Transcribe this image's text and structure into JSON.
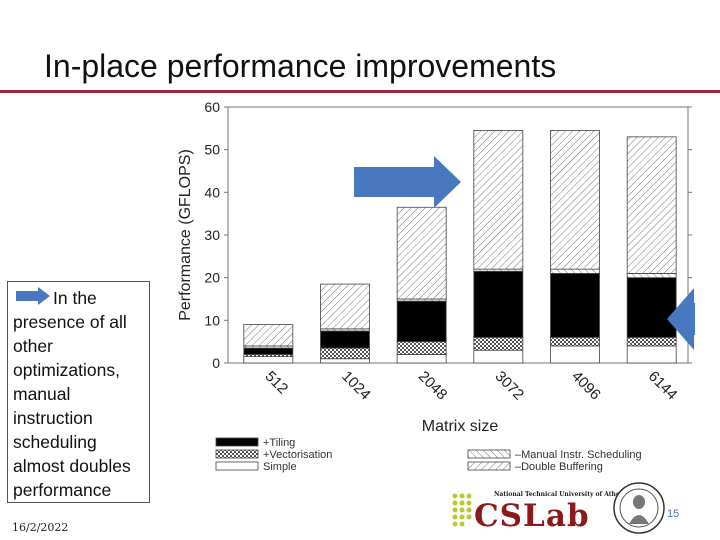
{
  "slide": {
    "title": "In-place performance improvements",
    "note": "In the presence of all other optimizations, manual instruction scheduling almost doubles performance",
    "date": "16/2/2022",
    "page_number": "15",
    "logo": {
      "name": "CSLab",
      "subtitle": "National Technical University of Athens"
    },
    "accent_color": "#a0283a",
    "arrow_color": "#4a78c0"
  },
  "chart_data": {
    "type": "bar",
    "stacked": true,
    "categories": [
      "512",
      "1024",
      "2048",
      "3072",
      "4096",
      "6144"
    ],
    "xlabel": "Matrix size",
    "ylabel": "Performance (GFLOPS)",
    "ylim": [
      0,
      60
    ],
    "yticks": [
      "0",
      "10",
      "20",
      "30",
      "40",
      "50",
      "60"
    ],
    "series": [
      {
        "name": "Simple",
        "values": [
          1.5,
          1.0,
          2.0,
          3.0,
          4.0,
          4.0
        ]
      },
      {
        "name": "+Vectorisation",
        "values": [
          0.5,
          2.5,
          3.0,
          3.0,
          2.0,
          2.0
        ]
      },
      {
        "name": "+Tiling",
        "values": [
          1.5,
          4.0,
          9.5,
          15.5,
          15.0,
          14.0
        ]
      },
      {
        "name": "–Manual Instr. Scheduling",
        "values": [
          0.5,
          0.5,
          0.5,
          0.5,
          1.0,
          1.0
        ]
      },
      {
        "name": "–Double Buffering",
        "values": [
          5.0,
          10.5,
          21.5,
          32.5,
          32.5,
          32.0
        ]
      }
    ],
    "legend": [
      "+Tiling",
      "+Vectorisation",
      "Simple",
      "–Manual Instr. Scheduling",
      "–Double Buffering"
    ]
  }
}
